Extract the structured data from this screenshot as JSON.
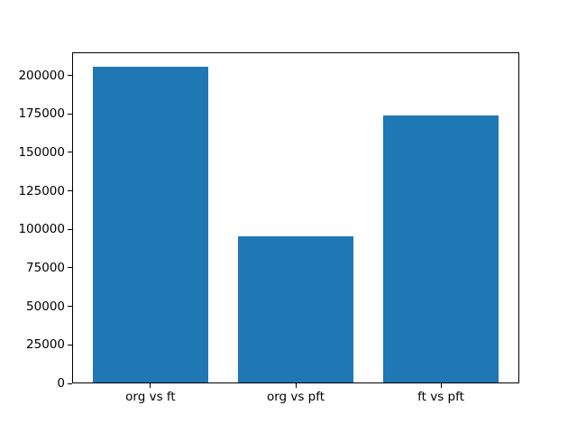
{
  "chart_data": {
    "type": "bar",
    "categories": [
      "org vs ft",
      "org vs pft",
      "ft vs pft"
    ],
    "values": [
      204700,
      95000,
      173100
    ],
    "title": "",
    "xlabel": "",
    "ylabel": "",
    "ylim": [
      0,
      214935
    ],
    "xlim": [
      -0.54,
      2.54
    ],
    "bar_width": 0.8,
    "yticks": [
      0,
      25000,
      50000,
      75000,
      100000,
      125000,
      150000,
      175000,
      200000
    ],
    "grid": false,
    "legend_position": "none"
  },
  "colors": {
    "bar": "#1f77b4",
    "axis": "#000000",
    "background": "#ffffff",
    "tick_text": "#000000"
  }
}
